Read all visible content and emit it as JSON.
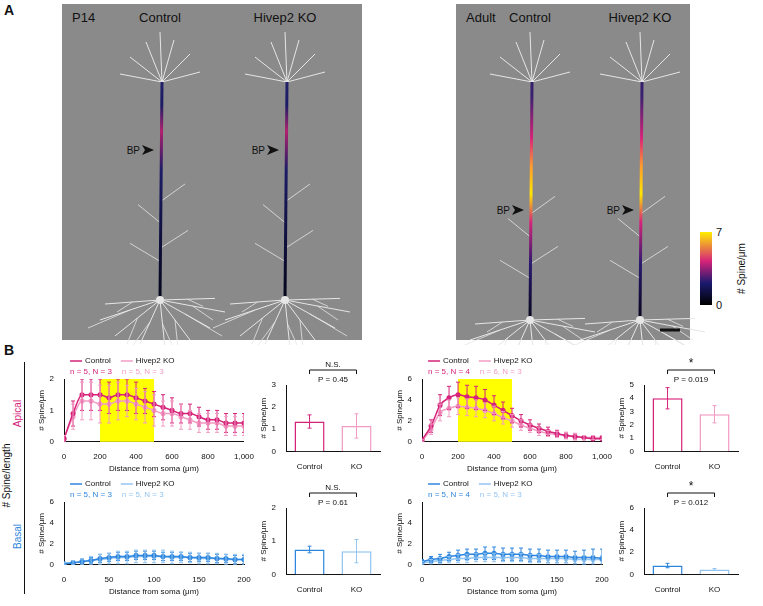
{
  "panel_A": {
    "letter": "A",
    "groups": [
      {
        "title": "P14",
        "neurons": [
          "Control",
          "Hivep2 KO"
        ]
      },
      {
        "title": "Adult",
        "neurons": [
          "Control",
          "Hivep2 KO"
        ]
      }
    ],
    "branch_point": "BP",
    "colorbar": {
      "range": [
        0,
        7
      ],
      "ticks": [
        0,
        7
      ],
      "label": "# Spine/μm"
    }
  },
  "panel_B": {
    "letter": "B",
    "y_group_label": "# Spine/length",
    "rows": [
      "Apical",
      "Basal"
    ]
  },
  "chart_data": [
    {
      "type": "line",
      "grid": false,
      "x": [
        0,
        50,
        100,
        150,
        200,
        250,
        300,
        350,
        400,
        450,
        500,
        550,
        600,
        650,
        700,
        750,
        800,
        850,
        900,
        950,
        1000
      ],
      "xlim": [
        0,
        1000
      ],
      "xticks": [
        0,
        200,
        400,
        600,
        800,
        1000
      ],
      "ylim": [
        0,
        2
      ],
      "yticks": [
        0,
        1,
        2
      ],
      "x_label": "Distance from soma (μm)",
      "y_label": "# Spine/μm",
      "highlight": [
        200,
        500
      ],
      "series": [
        {
          "name": "Control",
          "color": "#d6237a",
          "n_label": "n = 5, N = 3",
          "values": [
            0.1,
            0.9,
            1.5,
            1.5,
            1.5,
            1.4,
            1.5,
            1.5,
            1.4,
            1.3,
            1.2,
            1.1,
            1.0,
            0.9,
            0.9,
            0.8,
            0.7,
            0.7,
            0.6,
            0.6,
            0.6
          ],
          "errors": [
            0.1,
            0.4,
            0.5,
            0.5,
            0.5,
            0.5,
            0.5,
            0.5,
            0.5,
            0.4,
            0.4,
            0.4,
            0.4,
            0.3,
            0.3,
            0.3,
            0.3,
            0.3,
            0.3,
            0.3,
            0.3
          ]
        },
        {
          "name": "Hivep2 KO",
          "color": "#f29cc4",
          "n_label": "n = 5, N = 3",
          "values": [
            0.1,
            0.8,
            1.3,
            1.3,
            1.2,
            1.2,
            1.3,
            1.3,
            1.2,
            1.1,
            1.0,
            0.9,
            0.9,
            0.8,
            0.7,
            0.6,
            0.6,
            0.6,
            0.5,
            0.5,
            0.5
          ],
          "errors": [
            0.1,
            0.4,
            0.6,
            0.6,
            0.6,
            0.6,
            0.6,
            0.5,
            0.5,
            0.5,
            0.5,
            0.4,
            0.4,
            0.4,
            0.3,
            0.3,
            0.3,
            0.3,
            0.3,
            0.3,
            0.3
          ]
        }
      ]
    },
    {
      "type": "bar",
      "grid": false,
      "categories": [
        "Control",
        "KO"
      ],
      "values": [
        1.35,
        1.15
      ],
      "errors": [
        0.3,
        0.55
      ],
      "colors": [
        "#d6237a",
        "#f29cc4"
      ],
      "ylim": [
        0,
        3
      ],
      "yticks": [
        0,
        1,
        2,
        3
      ],
      "y_label": "# Spine/μm",
      "significance": "N.S.",
      "p_label": "P = 0.45"
    },
    {
      "type": "line",
      "grid": false,
      "x": [
        0,
        50,
        100,
        150,
        200,
        250,
        300,
        350,
        400,
        450,
        500,
        550,
        600,
        650,
        700,
        750,
        800,
        850,
        900,
        950,
        1000
      ],
      "xlim": [
        0,
        1000
      ],
      "xticks": [
        0,
        200,
        400,
        600,
        800,
        1000
      ],
      "ylim": [
        0,
        6
      ],
      "yticks": [
        0,
        2,
        4,
        6
      ],
      "x_label": "Distance from soma (μm)",
      "y_label": "# Spine/μm",
      "highlight": [
        200,
        500
      ],
      "series": [
        {
          "name": "Control",
          "color": "#d6237a",
          "n_label": "n = 5, N = 4",
          "values": [
            0.2,
            1.5,
            3.5,
            4.2,
            4.5,
            4.3,
            4.2,
            4.0,
            3.5,
            3.0,
            2.5,
            2.0,
            1.6,
            1.3,
            1.0,
            0.8,
            0.6,
            0.5,
            0.4,
            0.3,
            0.3
          ],
          "errors": [
            0.1,
            0.6,
            1.0,
            1.1,
            1.2,
            1.1,
            1.1,
            1.0,
            0.9,
            0.8,
            0.7,
            0.6,
            0.5,
            0.4,
            0.4,
            0.3,
            0.3,
            0.3,
            0.2,
            0.2,
            0.2
          ]
        },
        {
          "name": "Hivep2 KO",
          "color": "#f29cc4",
          "n_label": "n = 6, N = 3",
          "values": [
            0.1,
            1.2,
            2.8,
            3.2,
            3.4,
            3.3,
            3.2,
            3.0,
            2.7,
            2.3,
            2.0,
            1.6,
            1.3,
            1.0,
            0.8,
            0.7,
            0.6,
            0.5,
            0.4,
            0.4,
            0.4
          ],
          "errors": [
            0.1,
            0.5,
            0.8,
            0.8,
            0.8,
            0.8,
            0.8,
            0.7,
            0.7,
            0.6,
            0.6,
            0.5,
            0.4,
            0.4,
            0.3,
            0.3,
            0.3,
            0.3,
            0.2,
            0.2,
            0.2
          ]
        }
      ]
    },
    {
      "type": "bar",
      "grid": false,
      "categories": [
        "Control",
        "KO"
      ],
      "values": [
        4.0,
        2.8
      ],
      "errors": [
        0.8,
        0.65
      ],
      "colors": [
        "#d6237a",
        "#f29cc4"
      ],
      "ylim": [
        0,
        5
      ],
      "yticks": [
        0,
        1,
        2,
        3,
        4,
        5
      ],
      "y_label": "# Spine/μm",
      "significance": "*",
      "p_label": "P = 0.019"
    },
    {
      "type": "line",
      "grid": false,
      "x": [
        0,
        10,
        20,
        30,
        40,
        50,
        60,
        70,
        80,
        90,
        100,
        110,
        120,
        130,
        140,
        150,
        160,
        170,
        180,
        190,
        200
      ],
      "xlim": [
        0,
        200
      ],
      "xticks": [
        0,
        50,
        100,
        150,
        200
      ],
      "ylim": [
        0,
        6
      ],
      "yticks": [
        0,
        2,
        4,
        6
      ],
      "x_label": "Distance from soma (μm)",
      "y_label": "# Spine/μm",
      "series": [
        {
          "name": "Control",
          "color": "#2e86de",
          "n_label": "n = 5, N = 3",
          "values": [
            0.1,
            0.2,
            0.3,
            0.4,
            0.6,
            0.7,
            0.8,
            0.8,
            0.9,
            0.9,
            0.9,
            0.8,
            0.8,
            0.8,
            0.7,
            0.7,
            0.7,
            0.6,
            0.6,
            0.5,
            0.5
          ],
          "errors": [
            0.1,
            0.2,
            0.3,
            0.3,
            0.4,
            0.4,
            0.4,
            0.4,
            0.4,
            0.4,
            0.4,
            0.4,
            0.4,
            0.4,
            0.4,
            0.4,
            0.4,
            0.4,
            0.4,
            0.4,
            0.4
          ]
        },
        {
          "name": "Hivep2 KO",
          "color": "#93c5f0",
          "n_label": "n = 5, N = 3",
          "values": [
            0.1,
            0.2,
            0.3,
            0.4,
            0.5,
            0.6,
            0.7,
            0.7,
            0.8,
            0.8,
            0.8,
            0.8,
            0.7,
            0.7,
            0.7,
            0.6,
            0.6,
            0.6,
            0.5,
            0.5,
            0.5
          ],
          "errors": [
            0.1,
            0.2,
            0.3,
            0.4,
            0.5,
            0.5,
            0.6,
            0.6,
            0.6,
            0.6,
            0.6,
            0.6,
            0.6,
            0.5,
            0.5,
            0.5,
            0.5,
            0.5,
            0.5,
            0.5,
            0.5
          ]
        }
      ]
    },
    {
      "type": "bar",
      "grid": false,
      "categories": [
        "Control",
        "KO"
      ],
      "values": [
        0.75,
        0.7
      ],
      "errors": [
        0.1,
        0.35
      ],
      "colors": [
        "#2e86de",
        "#93c5f0"
      ],
      "ylim": [
        0,
        2
      ],
      "yticks": [
        0,
        1,
        2
      ],
      "y_label": "# Spine/μm",
      "significance": "N.S.",
      "p_label": "P = 0.61"
    },
    {
      "type": "line",
      "grid": false,
      "x": [
        0,
        10,
        20,
        30,
        40,
        50,
        60,
        70,
        80,
        90,
        100,
        110,
        120,
        130,
        140,
        150,
        160,
        170,
        180,
        190,
        200
      ],
      "xlim": [
        0,
        200
      ],
      "xticks": [
        0,
        50,
        100,
        150,
        200
      ],
      "ylim": [
        0,
        6
      ],
      "yticks": [
        0,
        2,
        4,
        6
      ],
      "x_label": "Distance from soma (μm)",
      "y_label": "# Spine/μm",
      "series": [
        {
          "name": "Control",
          "color": "#2e86de",
          "n_label": "n = 5, N = 4",
          "values": [
            0.3,
            0.5,
            0.6,
            0.8,
            0.9,
            1.0,
            1.0,
            1.1,
            1.1,
            1.0,
            1.0,
            1.0,
            0.9,
            0.9,
            0.8,
            0.8,
            0.8,
            0.7,
            0.7,
            0.7,
            0.6
          ],
          "errors": [
            0.2,
            0.3,
            0.4,
            0.4,
            0.5,
            0.5,
            0.5,
            0.6,
            0.6,
            0.6,
            0.6,
            0.6,
            0.6,
            0.6,
            0.6,
            0.6,
            0.6,
            0.6,
            0.7,
            0.8,
            0.9
          ]
        },
        {
          "name": "Hivep2 KO",
          "color": "#93c5f0",
          "n_label": "n = 5, N = 3",
          "values": [
            0.2,
            0.3,
            0.4,
            0.5,
            0.6,
            0.6,
            0.7,
            0.7,
            0.7,
            0.7,
            0.7,
            0.7,
            0.6,
            0.6,
            0.6,
            0.6,
            0.6,
            0.5,
            0.5,
            0.5,
            0.5
          ],
          "errors": [
            0.1,
            0.2,
            0.3,
            0.3,
            0.4,
            0.4,
            0.4,
            0.4,
            0.4,
            0.4,
            0.4,
            0.4,
            0.4,
            0.4,
            0.4,
            0.4,
            0.4,
            0.4,
            0.4,
            0.4,
            0.4
          ]
        }
      ]
    },
    {
      "type": "bar",
      "grid": false,
      "categories": [
        "Control",
        "KO"
      ],
      "values": [
        0.8,
        0.45
      ],
      "errors": [
        0.2,
        0.08
      ],
      "colors": [
        "#2e86de",
        "#93c5f0"
      ],
      "ylim": [
        0,
        6
      ],
      "yticks": [
        0,
        2,
        4,
        6
      ],
      "y_label": "# Spine/μm",
      "significance": "*",
      "p_label": "P = 0.012"
    }
  ]
}
